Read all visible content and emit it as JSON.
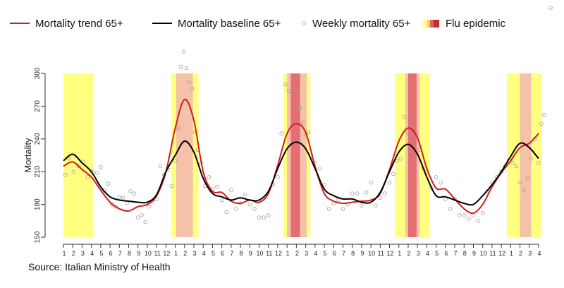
{
  "chart_data": {
    "type": "line",
    "ylabel": "Mortality",
    "ylim": [
      150,
      300
    ],
    "yticks": [
      150,
      180,
      210,
      240,
      270,
      300
    ],
    "source": "Source: Italian Ministry of Health",
    "legend": {
      "trend": "Mortality trend 65+",
      "baseline": "Mortality baseline 65+",
      "weekly": "Weekly mortality 65+",
      "flu": "Flu epidemic"
    },
    "colors": {
      "trend": "#d7191c",
      "baseline": "#000000",
      "weekly": "#9a9a9a",
      "flu_season": "#ffff80",
      "flu_mid": "#f4c2a8",
      "flu_peak": "#e0606a",
      "flu_band": "#c0302a"
    },
    "month_ticks": [
      "1",
      "2",
      "3",
      "4",
      "5",
      "6",
      "7",
      "8",
      "9",
      "10",
      "11",
      "12",
      "1",
      "2",
      "3",
      "4",
      "5",
      "6",
      "7",
      "8",
      "9",
      "10",
      "11",
      "12",
      "1",
      "2",
      "3",
      "4",
      "5",
      "6",
      "7",
      "8",
      "9",
      "10",
      "11",
      "12",
      "1",
      "2",
      "3",
      "4",
      "5",
      "6",
      "7",
      "8",
      "9",
      "10",
      "11",
      "12",
      "1",
      "2",
      "3",
      "4"
    ],
    "flu_epidemics": [
      {
        "season": [
          0.0,
          3.2
        ],
        "mid": null,
        "peak": null
      },
      {
        "season": [
          11.6,
          14.5
        ],
        "mid": [
          12.1,
          13.9
        ],
        "peak": null
      },
      {
        "season": [
          23.6,
          26.5
        ],
        "mid": [
          24.0,
          26.1
        ],
        "peak": [
          24.4,
          25.4
        ]
      },
      {
        "season": [
          35.6,
          39.3
        ],
        "mid": [
          36.7,
          38.2
        ],
        "peak": [
          37.0,
          37.9
        ]
      },
      {
        "season": [
          47.6,
          51.3
        ],
        "mid": [
          49.0,
          50.2
        ],
        "peak": null
      }
    ],
    "trend": {
      "x": [
        0,
        1,
        2,
        3,
        4,
        5,
        6,
        7,
        8,
        9,
        10,
        11,
        12,
        13,
        14,
        15,
        16,
        17,
        18,
        19,
        20,
        21,
        22,
        23,
        24,
        25,
        26,
        27,
        28,
        29,
        30,
        31,
        32,
        33,
        34,
        35,
        36,
        37,
        38,
        39,
        40,
        41,
        42,
        43,
        44,
        45,
        46,
        47,
        48,
        49,
        50,
        51
      ],
      "y": [
        215,
        219,
        212,
        205,
        193,
        182,
        176,
        174,
        178,
        180,
        188,
        210,
        250,
        276,
        257,
        210,
        192,
        191,
        183,
        181,
        184,
        182,
        190,
        216,
        245,
        254,
        246,
        215,
        190,
        183,
        181,
        182,
        183,
        184,
        190,
        212,
        238,
        250,
        241,
        213,
        195,
        194,
        185,
        176,
        172,
        180,
        196,
        209,
        220,
        232,
        236,
        245
      ]
    },
    "baseline": {
      "x": [
        0,
        1,
        2,
        3,
        4,
        5,
        6,
        7,
        8,
        9,
        10,
        11,
        12,
        13,
        14,
        15,
        16,
        17,
        18,
        19,
        20,
        21,
        22,
        23,
        24,
        25,
        26,
        27,
        28,
        29,
        30,
        31,
        32,
        33,
        34,
        35,
        36,
        37,
        38,
        39,
        40,
        41,
        42,
        43,
        44,
        45,
        46,
        47,
        48,
        49,
        50,
        51
      ],
      "y": [
        220,
        226,
        218,
        210,
        196,
        187,
        184,
        183,
        182,
        182,
        189,
        210,
        225,
        238,
        228,
        204,
        190,
        187,
        184,
        186,
        184,
        184,
        192,
        213,
        231,
        237,
        231,
        213,
        194,
        188,
        185,
        185,
        182,
        182,
        191,
        210,
        228,
        235,
        226,
        205,
        188,
        187,
        184,
        181,
        180,
        188,
        198,
        210,
        224,
        236,
        232,
        222
      ]
    },
    "weekly": {
      "x": [
        0.2,
        0.6,
        1.1,
        1.6,
        2.1,
        2.6,
        3.1,
        3.6,
        4.0,
        4.4,
        4.8,
        5.2,
        5.6,
        6.0,
        6.4,
        6.8,
        7.2,
        7.6,
        8.0,
        8.4,
        8.8,
        9.2,
        9.6,
        10.0,
        10.4,
        10.8,
        11.2,
        11.6,
        12.0,
        12.3,
        12.6,
        12.9,
        13.2,
        13.5,
        13.8,
        14.1,
        14.4,
        14.8,
        15.2,
        15.6,
        16.0,
        16.5,
        17.0,
        17.5,
        18.0,
        18.5,
        19.0,
        19.5,
        20.0,
        20.5,
        21.0,
        21.5,
        22.0,
        22.5,
        23.0,
        23.4,
        23.8,
        24.2,
        24.5,
        24.8,
        25.1,
        25.4,
        25.7,
        26.0,
        26.3,
        26.6,
        27.0,
        27.5,
        28.0,
        28.5,
        29.0,
        29.5,
        30.0,
        30.5,
        31.0,
        31.5,
        32.0,
        32.5,
        33.0,
        33.5,
        34.0,
        34.5,
        35.0,
        35.4,
        35.8,
        36.2,
        36.6,
        37.0,
        37.3,
        37.6,
        37.9,
        38.2,
        38.6,
        39.0,
        39.5,
        40.0,
        40.5,
        41.0,
        41.5,
        42.0,
        42.5,
        43.0,
        43.5,
        44.0,
        44.5,
        45.0,
        45.5,
        46.0,
        46.5,
        47.0,
        47.4,
        47.8,
        48.2,
        48.6,
        49.0,
        49.4,
        49.8,
        50.2,
        50.6,
        51.0,
        51.3,
        51.6
      ],
      "y": [
        207,
        222,
        210,
        215,
        219,
        205,
        210,
        209,
        214,
        193,
        199,
        180,
        178,
        187,
        186,
        181,
        192,
        190,
        168,
        170,
        164,
        178,
        183,
        185,
        215,
        207,
        212,
        197,
        220,
        250,
        306,
        320,
        305,
        292,
        286,
        246,
        230,
        218,
        197,
        205,
        194,
        196,
        184,
        173,
        193,
        176,
        181,
        189,
        180,
        176,
        168,
        168,
        170,
        198,
        205,
        245,
        290,
        284,
        250,
        285,
        271,
        268,
        255,
        244,
        246,
        225,
        218,
        213,
        198,
        176,
        181,
        184,
        176,
        180,
        190,
        190,
        179,
        191,
        200,
        179,
        186,
        190,
        200,
        208,
        220,
        222,
        260,
        245,
        252,
        244,
        245,
        230,
        213,
        210,
        195,
        205,
        200,
        185,
        176,
        185,
        170,
        170,
        167,
        170,
        165,
        172,
        192,
        200,
        205,
        210,
        215,
        220,
        218,
        215,
        200,
        193,
        204,
        222,
        240,
        218,
        254,
        262
      ]
    }
  }
}
